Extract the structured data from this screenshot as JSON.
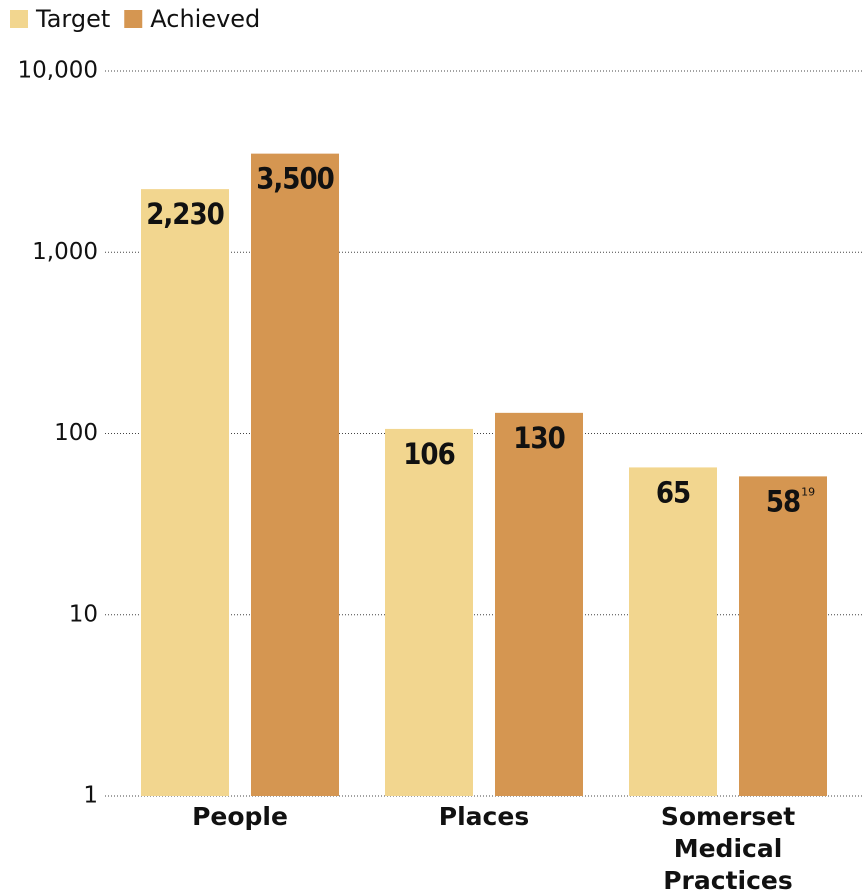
{
  "chart_data": {
    "type": "bar",
    "log_scale": true,
    "categories": [
      "People",
      "Places",
      "Somerset Medical Practices"
    ],
    "series": [
      {
        "name": "Target",
        "color": "#f2d68f",
        "values": [
          2230,
          106,
          65
        ],
        "value_labels": [
          "2,230",
          "106",
          "65"
        ]
      },
      {
        "name": "Achieved",
        "color": "#d59651",
        "values": [
          3500,
          130,
          58
        ],
        "value_labels": [
          "3,500",
          "130",
          "58"
        ],
        "footnote": "19"
      }
    ],
    "ylim": [
      1,
      10000
    ],
    "yticks": [
      {
        "value": 1,
        "label": "1"
      },
      {
        "value": 10,
        "label": "10"
      },
      {
        "value": 100,
        "label": "100"
      },
      {
        "value": 1000,
        "label": "1,000"
      },
      {
        "value": 10000,
        "label": "10,000"
      }
    ],
    "grid": true,
    "legend": "top-left"
  }
}
